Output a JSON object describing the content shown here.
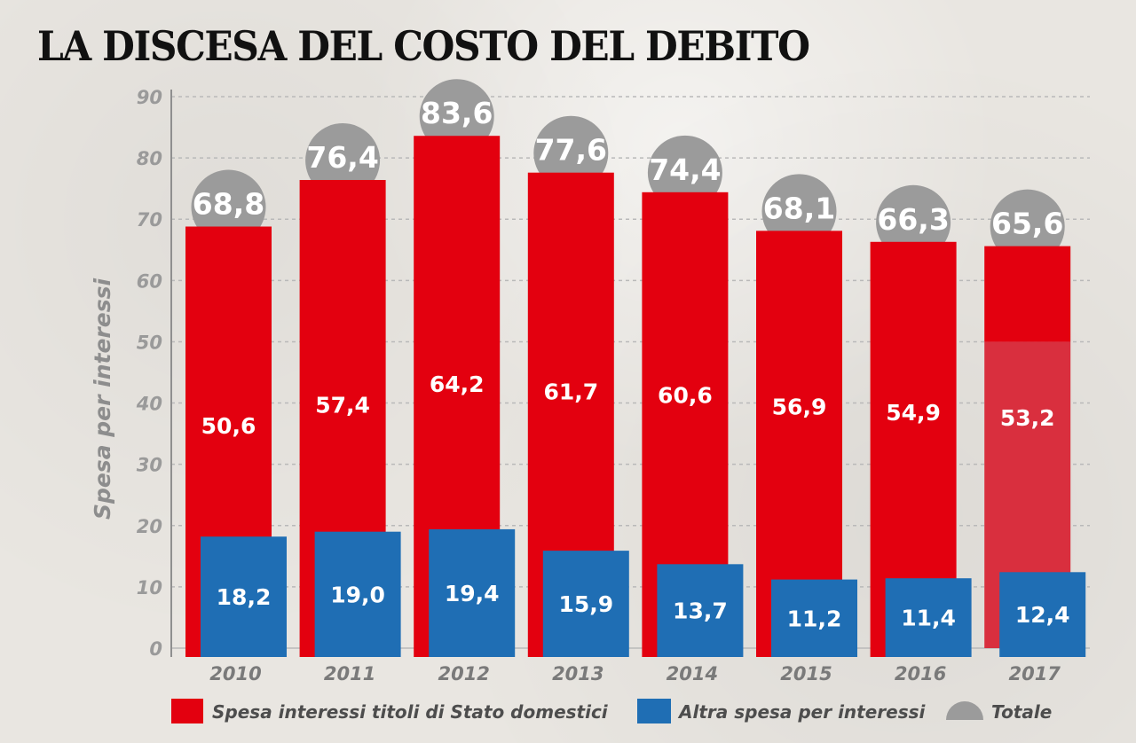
{
  "title": "LA DISCESA DEL COSTO DEL DEBITO",
  "colors": {
    "domestic": "#e3000f",
    "domestic_2017_lower": "#d92f3e",
    "other": "#1f6eb4",
    "total": "#9b9b9b",
    "grid": "#b9b9b9"
  },
  "chart_data": {
    "type": "bar",
    "title": "LA DISCESA DEL COSTO DEL DEBITO",
    "xlabel": "",
    "ylabel": "Spesa per interessi",
    "ylim": [
      0,
      90
    ],
    "yticks": [
      "0",
      "10",
      "20",
      "30",
      "40",
      "50",
      "60",
      "70",
      "80",
      "90"
    ],
    "categories": [
      "2010",
      "2011",
      "2012",
      "2013",
      "2014",
      "2015",
      "2016",
      "2017"
    ],
    "series": [
      {
        "name": "Spesa interessi titoli di Stato domestici",
        "values": [
          50.6,
          57.4,
          64.2,
          61.7,
          60.6,
          56.9,
          54.9,
          53.2
        ],
        "labels": [
          "50,6",
          "57,4",
          "64,2",
          "61,7",
          "60,6",
          "56,9",
          "54,9",
          "53,2"
        ]
      },
      {
        "name": "Altra spesa per interessi",
        "values": [
          18.2,
          19.0,
          19.4,
          15.9,
          13.7,
          11.2,
          11.4,
          12.4
        ],
        "labels": [
          "18,2",
          "19,0",
          "19,4",
          "15,9",
          "13,7",
          "11,2",
          "11,4",
          "12,4"
        ]
      },
      {
        "name": "Totale",
        "values": [
          68.8,
          76.4,
          83.6,
          77.6,
          74.4,
          68.1,
          66.3,
          65.6
        ],
        "labels": [
          "68,8",
          "76,4",
          "83,6",
          "77,6",
          "74,4",
          "68,1",
          "66,3",
          "65,6"
        ]
      }
    ],
    "legend": {
      "position": "bottom",
      "items": [
        "Spesa interessi titoli di Stato domestici",
        "Altra spesa per interessi",
        "Totale"
      ]
    },
    "grid": true
  }
}
